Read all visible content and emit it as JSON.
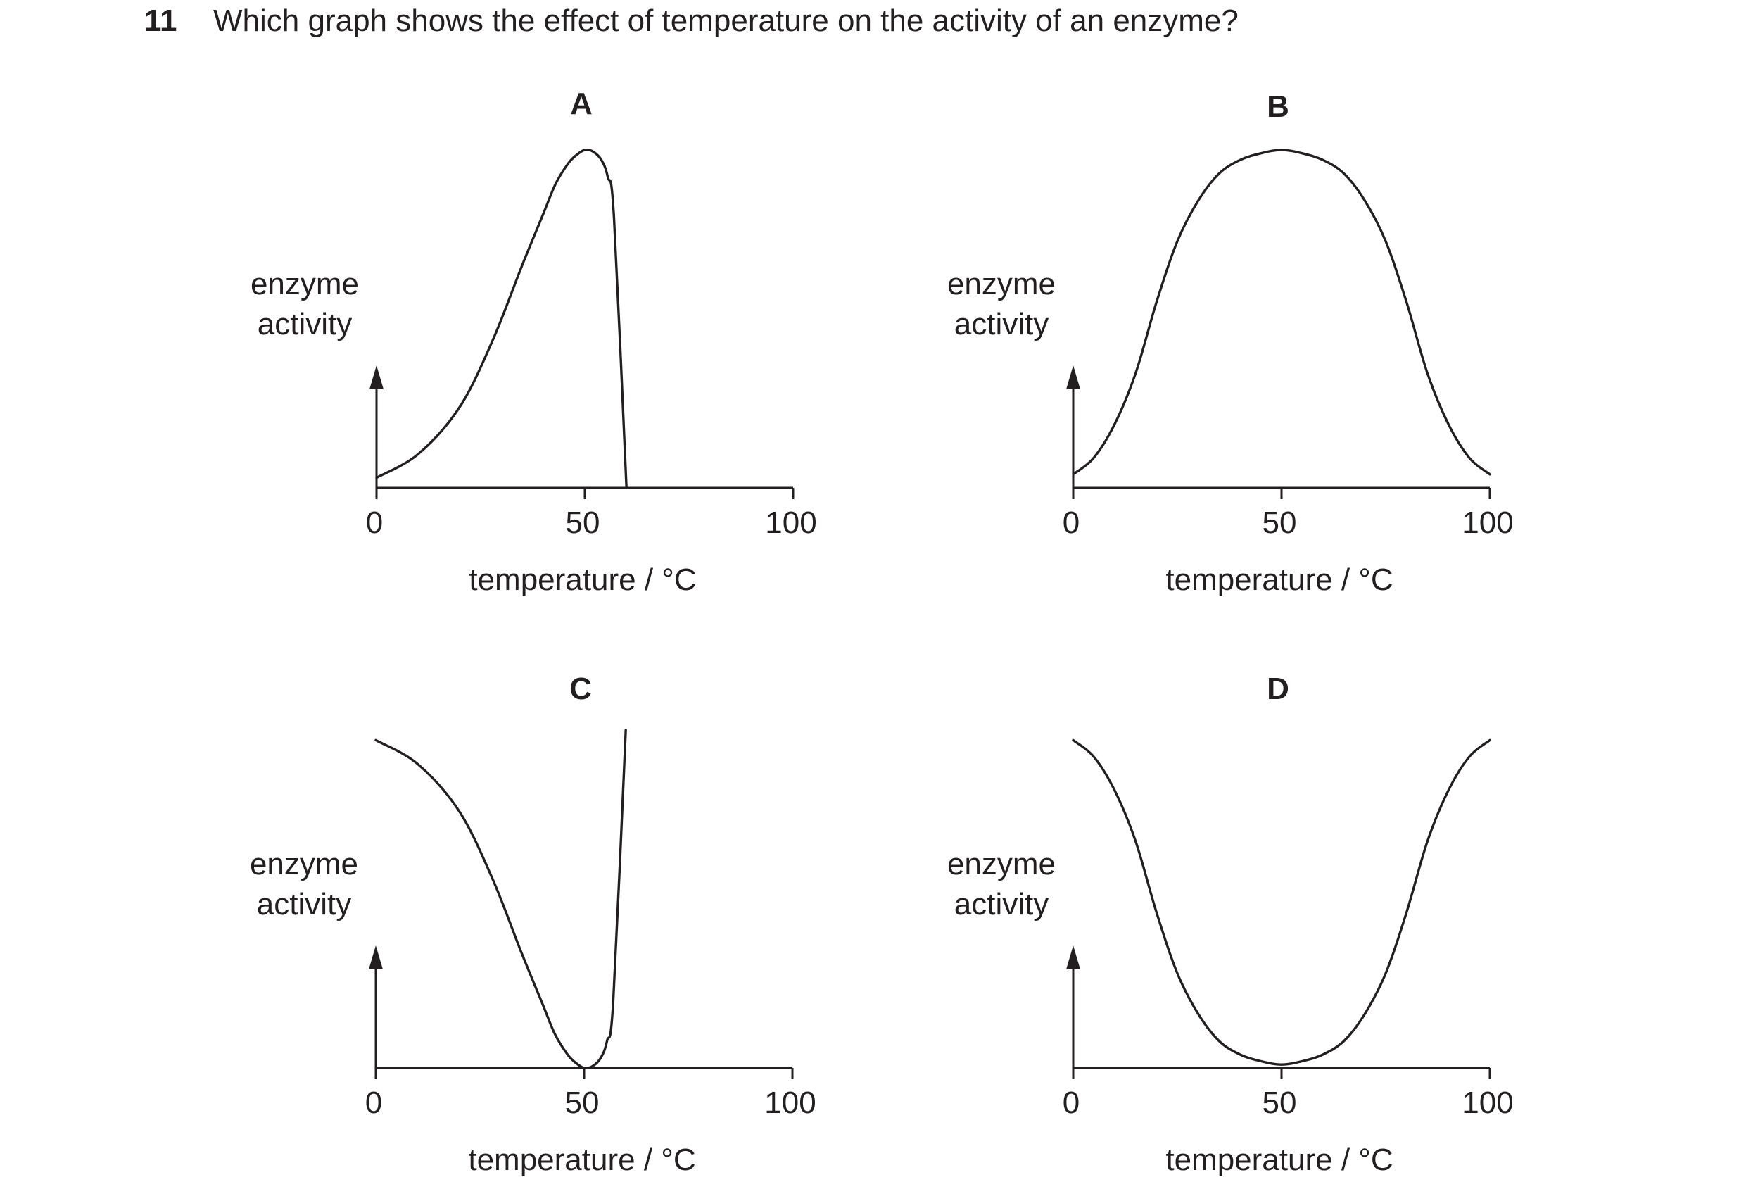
{
  "question": {
    "number": "11",
    "text": "Which graph shows the effect of temperature on the activity of an enzyme?"
  },
  "colors": {
    "ink": "#231f20"
  },
  "chart_data": [
    {
      "type": "line",
      "title": "A",
      "xlabel": "temperature / °C",
      "ylabel_lines": [
        "enzyme",
        "activity"
      ],
      "xlim": [
        0,
        100
      ],
      "xticks": [
        "0",
        "50",
        "100"
      ],
      "ylim": [
        0,
        1
      ],
      "series": [
        {
          "x": [
            0,
            10,
            20,
            28,
            35,
            40,
            43,
            46,
            48,
            50,
            52,
            54,
            55.5,
            57,
            60
          ],
          "y": [
            0.03,
            0.1,
            0.24,
            0.44,
            0.66,
            0.81,
            0.9,
            0.96,
            0.985,
            1.0,
            0.995,
            0.97,
            0.92,
            0.8,
            0.0
          ]
        }
      ]
    },
    {
      "type": "line",
      "title": "B",
      "xlabel": "temperature / °C",
      "ylabel_lines": [
        "enzyme",
        "activity"
      ],
      "xlim": [
        0,
        100
      ],
      "xticks": [
        "0",
        "50",
        "100"
      ],
      "ylim": [
        0,
        1
      ],
      "series": [
        {
          "x": [
            0,
            5,
            10,
            15,
            20,
            25,
            30,
            35,
            40,
            45,
            50,
            55,
            60,
            65,
            70,
            75,
            80,
            85,
            90,
            95,
            100
          ],
          "y": [
            0.04,
            0.09,
            0.19,
            0.34,
            0.55,
            0.73,
            0.85,
            0.93,
            0.97,
            0.99,
            1.0,
            0.99,
            0.97,
            0.93,
            0.85,
            0.73,
            0.55,
            0.34,
            0.19,
            0.09,
            0.04
          ]
        }
      ]
    },
    {
      "type": "line",
      "title": "C",
      "xlabel": "temperature / °C",
      "ylabel_lines": [
        "enzyme",
        "activity"
      ],
      "xlim": [
        0,
        100
      ],
      "xticks": [
        "0",
        "50",
        "100"
      ],
      "ylim": [
        0,
        1
      ],
      "series": [
        {
          "x": [
            0,
            10,
            20,
            28,
            35,
            40,
            43,
            46,
            48,
            50,
            52,
            54,
            55.5,
            57,
            60
          ],
          "y": [
            0.97,
            0.9,
            0.76,
            0.56,
            0.34,
            0.19,
            0.1,
            0.04,
            0.015,
            0.0,
            0.005,
            0.03,
            0.08,
            0.2,
            1.0
          ]
        }
      ]
    },
    {
      "type": "line",
      "title": "D",
      "xlabel": "temperature / °C",
      "ylabel_lines": [
        "enzyme",
        "activity"
      ],
      "xlim": [
        0,
        100
      ],
      "xticks": [
        "0",
        "50",
        "100"
      ],
      "ylim": [
        0,
        1
      ],
      "series": [
        {
          "x": [
            0,
            5,
            10,
            15,
            20,
            25,
            30,
            35,
            40,
            45,
            50,
            55,
            60,
            65,
            70,
            75,
            80,
            85,
            90,
            95,
            100
          ],
          "y": [
            0.97,
            0.92,
            0.82,
            0.67,
            0.46,
            0.28,
            0.16,
            0.08,
            0.04,
            0.02,
            0.01,
            0.02,
            0.04,
            0.08,
            0.16,
            0.28,
            0.46,
            0.67,
            0.82,
            0.92,
            0.97
          ]
        }
      ]
    }
  ]
}
